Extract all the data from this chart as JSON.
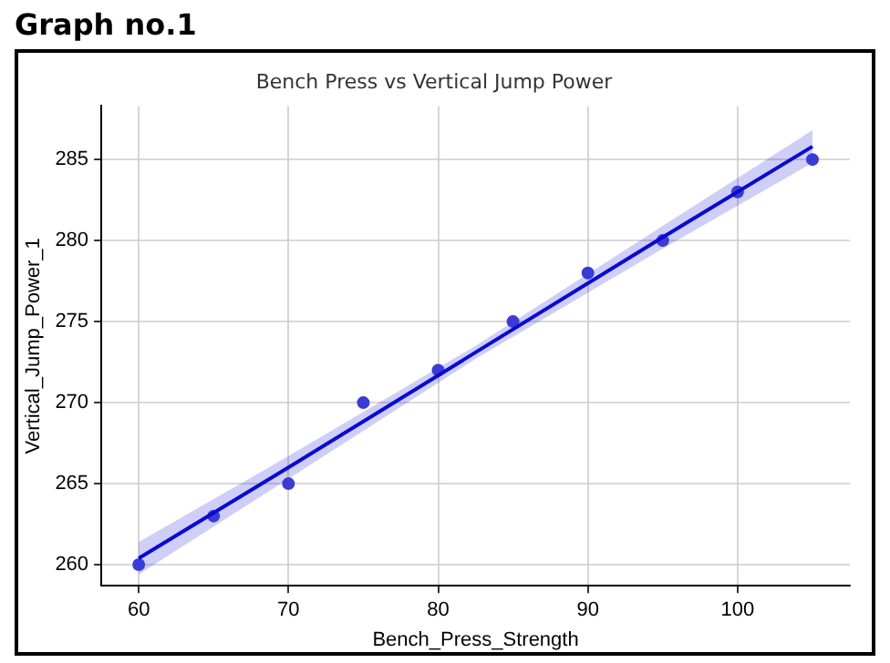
{
  "chart_data": {
    "type": "scatter",
    "title": "Bench Press vs Vertical Jump Power",
    "xlabel": "Bench_Press_Strength",
    "ylabel": "Vertical_Jump_Power_1",
    "annotations": [
      "Graph no.1"
    ],
    "series": [
      {
        "color": "#3b3bd6",
        "marker": "circle",
        "x": [
          60,
          65,
          70,
          75,
          80,
          85,
          90,
          95,
          100,
          105
        ],
        "values": [
          260,
          263,
          265,
          270,
          272,
          275,
          278,
          280,
          283,
          285
        ]
      },
      {
        "type": "line",
        "color": "#0a0ad2",
        "x": [
          60,
          70,
          82.5,
          95,
          105
        ],
        "values": [
          260.4,
          266.0,
          273.1,
          280.2,
          285.8
        ],
        "lower": [
          259.4,
          265.3,
          272.7,
          279.5,
          284.8
        ],
        "upper": [
          261.4,
          266.7,
          273.5,
          280.9,
          286.8
        ]
      }
    ],
    "xlim": [
      57.5,
      107.5
    ],
    "xticks": [
      60,
      70,
      80,
      90,
      100
    ],
    "ylim": [
      258.7,
      288.3
    ],
    "yticks": [
      260,
      265,
      270,
      275,
      280,
      285
    ],
    "grid": true
  }
}
